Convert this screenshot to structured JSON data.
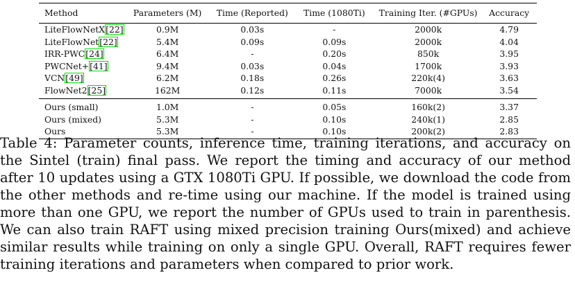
{
  "table": {
    "columns": [
      "Method",
      "Parameters (M)",
      "Time (Reported)",
      "Time (1080Ti)",
      "Training Iter. (#GPUs)",
      "Accuracy"
    ],
    "prior_rows": [
      {
        "method": "LiteFlowNetX",
        "cite": "22",
        "params": "0.9M",
        "time_reported": "0.03s",
        "time_1080ti": "-",
        "iters": "2000k",
        "accuracy": "4.79"
      },
      {
        "method": "LiteFlowNet",
        "cite": "22",
        "params": "5.4M",
        "time_reported": "0.09s",
        "time_1080ti": "0.09s",
        "iters": "2000k",
        "accuracy": "4.04"
      },
      {
        "method": "IRR-PWC",
        "cite": "24",
        "params": "6.4M",
        "time_reported": "-",
        "time_1080ti": "0.20s",
        "iters": "850k",
        "accuracy": "3.95"
      },
      {
        "method": "PWCNet+",
        "cite": "41",
        "params": "9.4M",
        "time_reported": "0.03s",
        "time_1080ti": "0.04s",
        "iters": "1700k",
        "accuracy": "3.93"
      },
      {
        "method": "VCN",
        "cite": "49",
        "params": "6.2M",
        "time_reported": "0.18s",
        "time_1080ti": "0.26s",
        "iters": "220k(4)",
        "accuracy": "3.63"
      },
      {
        "method": "FlowNet2",
        "cite": "25",
        "params": "162M",
        "time_reported": "0.12s",
        "time_1080ti": "0.11s",
        "iters": "7000k",
        "accuracy": "3.54"
      }
    ],
    "our_rows": [
      {
        "method": "Ours (small)",
        "params": "1.0M",
        "time_reported": "-",
        "time_1080ti": "0.05s",
        "iters": "160k(2)",
        "accuracy": "3.37"
      },
      {
        "method": "Ours (mixed)",
        "params": "5.3M",
        "time_reported": "-",
        "time_1080ti": "0.10s",
        "iters": "240k(1)",
        "accuracy": "2.85"
      },
      {
        "method": "Ours",
        "params": "5.3M",
        "time_reported": "-",
        "time_1080ti": "0.10s",
        "iters": "200k(2)",
        "accuracy": "2.83"
      }
    ]
  },
  "caption": {
    "label": "Table 4:",
    "text": "Parameter counts, inference time, training iterations, and accuracy on the Sintel (train) final pass. We report the timing and accuracy of our method after 10 updates using a GTX 1080Ti GPU. If possible, we download the code from the other methods and re-time using our machine. If the model is trained using more than one GPU, we report the number of GPUs used to train in parenthesis. We can also train RAFT using mixed precision training Ours(mixed) and achieve similar results while training on only a single GPU. Overall, RAFT requires fewer training iterations and parameters when compared to prior work."
  }
}
